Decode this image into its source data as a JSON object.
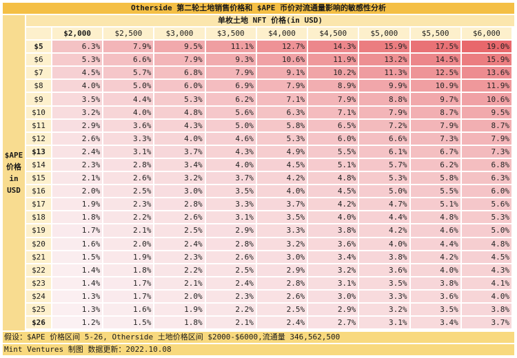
{
  "title": "Otherside 第二轮土地销售价格和 $APE 币价对流通量影响的敏感性分析",
  "column_group_header": "单枚土地 NFT 价格(in USD)",
  "row_group_label": [
    "$APE",
    "价格",
    "in",
    "USD"
  ],
  "footer": {
    "assumption": "假设：$APE 价格区间 5-26, Otherside 土地价格区间 $2000-$6000,流通量 346,562,500",
    "credit": "Mint Ventures 制图 数据更新：2022.10.08"
  },
  "colors": {
    "title_bg": "#f4bf45",
    "label_bg": "#f8dc90",
    "header_bg": "#fdf0cc",
    "heat_low": "#fbf1f3",
    "heat_high": "#e8686c"
  },
  "chart_data": {
    "type": "heatmap",
    "title": "Otherside 第二轮土地销售价格和 $APE 币价对流通量影响的敏感性分析",
    "xlabel": "单枚土地 NFT 价格(in USD)",
    "ylabel": "$APE 价格 in USD",
    "columns": [
      "$2,000",
      "$2,500",
      "$3,000",
      "$3,500",
      "$4,000",
      "$4,500",
      "$5,000",
      "$5,500",
      "$6,000"
    ],
    "bold_columns": [
      0
    ],
    "rows": [
      "$5",
      "$6",
      "$7",
      "$8",
      "$9",
      "$10",
      "$11",
      "$12",
      "$13",
      "$14",
      "$15",
      "$16",
      "$17",
      "$18",
      "$19",
      "$20",
      "$21",
      "$22",
      "$23",
      "$24",
      "$25",
      "$26"
    ],
    "bold_rows": [
      0,
      8,
      21
    ],
    "values": [
      [
        "6.3%",
        "7.9%",
        "9.5%",
        "11.1%",
        "12.7%",
        "14.3%",
        "15.9%",
        "17.5%",
        "19.0%"
      ],
      [
        "5.3%",
        "6.6%",
        "7.9%",
        "9.3%",
        "10.6%",
        "11.9%",
        "13.2%",
        "14.5%",
        "15.9%"
      ],
      [
        "4.5%",
        "5.7%",
        "6.8%",
        "7.9%",
        "9.1%",
        "10.2%",
        "11.3%",
        "12.5%",
        "13.6%"
      ],
      [
        "4.0%",
        "5.0%",
        "6.0%",
        "6.9%",
        "7.9%",
        "8.9%",
        "9.9%",
        "10.9%",
        "11.9%"
      ],
      [
        "3.5%",
        "4.4%",
        "5.3%",
        "6.2%",
        "7.1%",
        "7.9%",
        "8.8%",
        "9.7%",
        "10.6%"
      ],
      [
        "3.2%",
        "4.0%",
        "4.8%",
        "5.6%",
        "6.3%",
        "7.1%",
        "7.9%",
        "8.7%",
        "9.5%"
      ],
      [
        "2.9%",
        "3.6%",
        "4.3%",
        "5.0%",
        "5.8%",
        "6.5%",
        "7.2%",
        "7.9%",
        "8.7%"
      ],
      [
        "2.6%",
        "3.3%",
        "4.0%",
        "4.6%",
        "5.3%",
        "6.0%",
        "6.6%",
        "7.3%",
        "7.9%"
      ],
      [
        "2.4%",
        "3.1%",
        "3.7%",
        "4.3%",
        "4.9%",
        "5.5%",
        "6.1%",
        "6.7%",
        "7.3%"
      ],
      [
        "2.3%",
        "2.8%",
        "3.4%",
        "4.0%",
        "4.5%",
        "5.1%",
        "5.7%",
        "6.2%",
        "6.8%"
      ],
      [
        "2.1%",
        "2.6%",
        "3.2%",
        "3.7%",
        "4.2%",
        "4.8%",
        "5.3%",
        "5.8%",
        "6.3%"
      ],
      [
        "2.0%",
        "2.5%",
        "3.0%",
        "3.5%",
        "4.0%",
        "4.5%",
        "5.0%",
        "5.5%",
        "6.0%"
      ],
      [
        "1.9%",
        "2.3%",
        "2.8%",
        "3.3%",
        "3.7%",
        "4.2%",
        "4.7%",
        "5.1%",
        "5.6%"
      ],
      [
        "1.8%",
        "2.2%",
        "2.6%",
        "3.1%",
        "3.5%",
        "4.0%",
        "4.4%",
        "4.8%",
        "5.3%"
      ],
      [
        "1.7%",
        "2.1%",
        "2.5%",
        "2.9%",
        "3.3%",
        "3.8%",
        "4.2%",
        "4.6%",
        "5.0%"
      ],
      [
        "1.6%",
        "2.0%",
        "2.4%",
        "2.8%",
        "3.2%",
        "3.6%",
        "4.0%",
        "4.4%",
        "4.8%"
      ],
      [
        "1.5%",
        "1.9%",
        "2.3%",
        "2.6%",
        "3.0%",
        "3.4%",
        "3.8%",
        "4.2%",
        "4.5%"
      ],
      [
        "1.4%",
        "1.8%",
        "2.2%",
        "2.5%",
        "2.9%",
        "3.2%",
        "3.6%",
        "4.0%",
        "4.3%"
      ],
      [
        "1.4%",
        "1.7%",
        "2.1%",
        "2.4%",
        "2.8%",
        "3.1%",
        "3.5%",
        "3.8%",
        "4.1%"
      ],
      [
        "1.3%",
        "1.7%",
        "2.0%",
        "2.3%",
        "2.6%",
        "3.0%",
        "3.3%",
        "3.6%",
        "4.0%"
      ],
      [
        "1.3%",
        "1.6%",
        "1.9%",
        "2.2%",
        "2.5%",
        "2.9%",
        "3.2%",
        "3.5%",
        "3.8%"
      ],
      [
        "1.2%",
        "1.5%",
        "1.8%",
        "2.1%",
        "2.4%",
        "2.7%",
        "3.1%",
        "3.4%",
        "3.7%"
      ]
    ],
    "value_range": [
      1.2,
      19.0
    ],
    "legend": "none",
    "grid": true
  }
}
